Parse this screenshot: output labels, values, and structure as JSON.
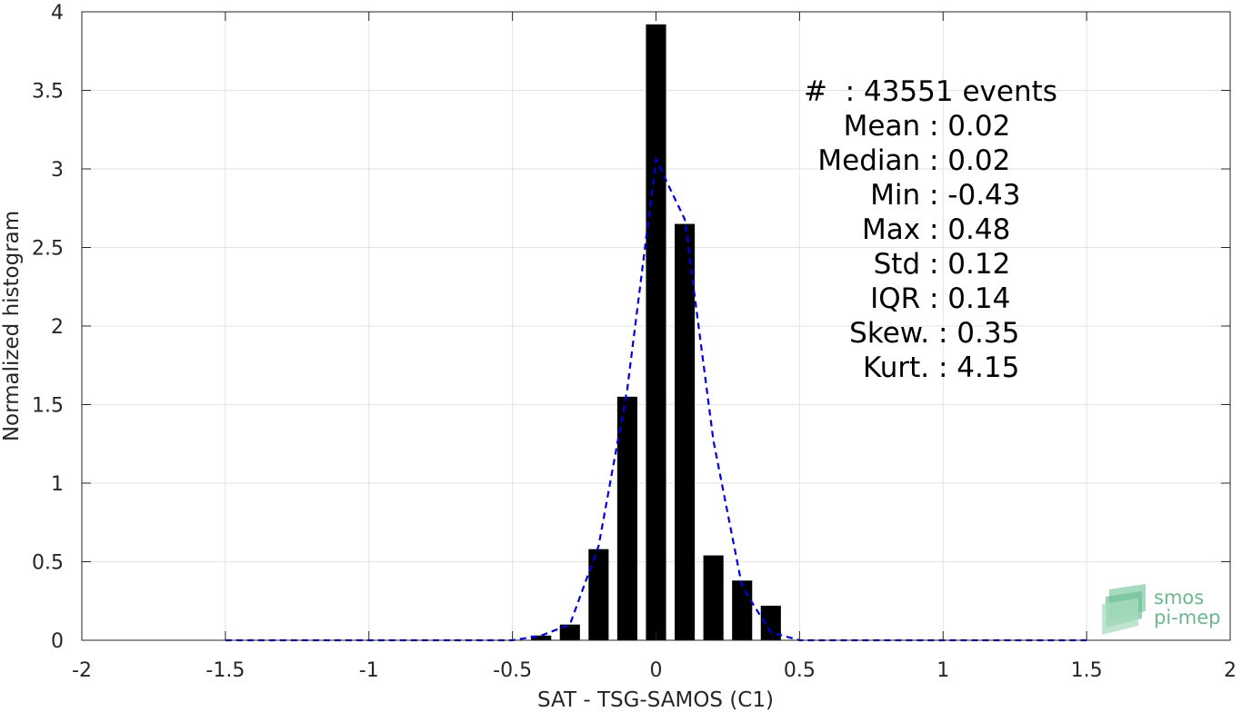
{
  "chart_data": {
    "type": "bar",
    "xlabel": "SAT - TSG-SAMOS (C1)",
    "ylabel": "Normalized histogram",
    "xlim": [
      -2,
      2
    ],
    "ylim": [
      0,
      4
    ],
    "xticks": [
      -2,
      -1.5,
      -1,
      -0.5,
      0,
      0.5,
      1,
      1.5,
      2
    ],
    "yticks": [
      0,
      0.5,
      1,
      1.5,
      2,
      2.5,
      3,
      3.5,
      4
    ],
    "xtick_labels": [
      "-2",
      "-1.5",
      "-1",
      "-0.5",
      "0",
      "0.5",
      "1",
      "1.5",
      "2"
    ],
    "ytick_labels": [
      "0",
      "0.5",
      "1",
      "1.5",
      "2",
      "2.5",
      "3",
      "3.5",
      "4"
    ],
    "grid": true,
    "bar_width": 0.07,
    "bars": [
      {
        "x": -0.4,
        "value": 0.03
      },
      {
        "x": -0.3,
        "value": 0.1
      },
      {
        "x": -0.2,
        "value": 0.58
      },
      {
        "x": -0.1,
        "value": 1.55
      },
      {
        "x": 0.0,
        "value": 3.92
      },
      {
        "x": 0.1,
        "value": 2.65
      },
      {
        "x": 0.2,
        "value": 0.54
      },
      {
        "x": 0.3,
        "value": 0.38
      },
      {
        "x": 0.4,
        "value": 0.22
      }
    ],
    "fit_curve": {
      "style": "dashed",
      "color": "#0000e0",
      "x": [
        -1.5,
        -0.5,
        -0.4,
        -0.3,
        -0.2,
        -0.1,
        0.0,
        0.1,
        0.2,
        0.3,
        0.4,
        0.5,
        1.5
      ],
      "y": [
        0.0,
        0.0,
        0.03,
        0.1,
        0.6,
        1.6,
        3.06,
        2.68,
        1.27,
        0.34,
        0.05,
        0.0,
        0.0
      ]
    },
    "bar_color": "#000000"
  },
  "stats": {
    "count_label": "#  : 43551 events",
    "rows": [
      {
        "key": "Mean",
        "value": "0.02"
      },
      {
        "key": "Median",
        "value": "0.02"
      },
      {
        "key": "Min",
        "value": "-0.43"
      },
      {
        "key": "Max",
        "value": "0.48"
      },
      {
        "key": "Std",
        "value": "0.12"
      },
      {
        "key": "IQR",
        "value": "0.14"
      },
      {
        "key": "Skew.",
        "value": "0.35"
      },
      {
        "key": "Kurt.",
        "value": "4.15"
      }
    ]
  },
  "logo": {
    "line1": "smos",
    "line2": "pi-mep"
  }
}
